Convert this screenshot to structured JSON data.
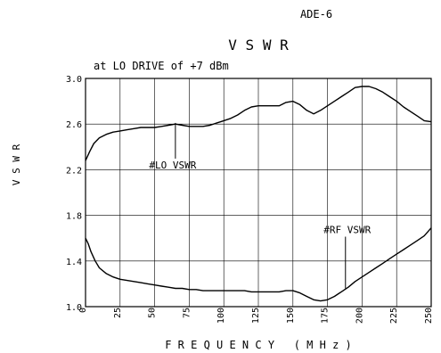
{
  "model": "ADE-6",
  "chart_data": {
    "type": "line",
    "title": "V S W R",
    "subtitle": "at LO DRIVE of +7 dBm",
    "xlabel": "F R E Q U E N C Y   ( M H z )",
    "ylabel": "V S W R",
    "xlim": [
      0,
      250
    ],
    "ylim": [
      1.0,
      3.0
    ],
    "x_ticks": [
      0,
      25,
      50,
      75,
      100,
      125,
      150,
      175,
      200,
      225,
      250
    ],
    "y_ticks": [
      1.0,
      1.4,
      1.8,
      2.2,
      2.6,
      3.0
    ],
    "y_tick_labels": [
      "1.0",
      "1.4",
      "1.8",
      "2.2",
      "2.6",
      "3.0"
    ],
    "grid": true,
    "series": [
      {
        "name": "#LO VSWR",
        "x": [
          0,
          3,
          6,
          10,
          15,
          20,
          25,
          30,
          35,
          40,
          45,
          50,
          55,
          60,
          65,
          70,
          75,
          80,
          85,
          90,
          95,
          100,
          105,
          110,
          115,
          120,
          125,
          130,
          135,
          140,
          145,
          150,
          155,
          160,
          165,
          170,
          175,
          180,
          185,
          190,
          195,
          200,
          205,
          210,
          215,
          220,
          225,
          230,
          235,
          240,
          245,
          250
        ],
        "y": [
          2.28,
          2.36,
          2.43,
          2.48,
          2.51,
          2.53,
          2.54,
          2.55,
          2.56,
          2.57,
          2.57,
          2.57,
          2.58,
          2.59,
          2.6,
          2.59,
          2.58,
          2.58,
          2.58,
          2.59,
          2.61,
          2.63,
          2.65,
          2.68,
          2.72,
          2.75,
          2.76,
          2.76,
          2.76,
          2.76,
          2.79,
          2.8,
          2.77,
          2.72,
          2.69,
          2.72,
          2.76,
          2.8,
          2.84,
          2.88,
          2.92,
          2.93,
          2.93,
          2.91,
          2.88,
          2.84,
          2.8,
          2.75,
          2.71,
          2.67,
          2.63,
          2.62
        ]
      },
      {
        "name": "#RF VSWR",
        "x": [
          0,
          2,
          4,
          7,
          10,
          15,
          20,
          25,
          30,
          35,
          40,
          45,
          50,
          55,
          60,
          65,
          70,
          75,
          80,
          85,
          90,
          95,
          100,
          105,
          110,
          115,
          120,
          125,
          130,
          135,
          140,
          145,
          150,
          155,
          160,
          165,
          170,
          175,
          180,
          185,
          190,
          195,
          200,
          205,
          210,
          215,
          220,
          225,
          230,
          235,
          240,
          245,
          250
        ],
        "y": [
          1.6,
          1.55,
          1.48,
          1.4,
          1.34,
          1.29,
          1.26,
          1.24,
          1.23,
          1.22,
          1.21,
          1.2,
          1.19,
          1.18,
          1.17,
          1.16,
          1.16,
          1.15,
          1.15,
          1.14,
          1.14,
          1.14,
          1.14,
          1.14,
          1.14,
          1.14,
          1.13,
          1.13,
          1.13,
          1.13,
          1.13,
          1.14,
          1.14,
          1.12,
          1.09,
          1.06,
          1.05,
          1.06,
          1.09,
          1.13,
          1.17,
          1.22,
          1.26,
          1.3,
          1.34,
          1.38,
          1.42,
          1.46,
          1.5,
          1.54,
          1.58,
          1.62,
          1.69
        ]
      }
    ],
    "annotations": [
      {
        "text": "#LO VSWR",
        "point_x": 65,
        "point_y": 2.61
      },
      {
        "text": "#RF VSWR",
        "point_x": 188,
        "point_y": 1.16
      }
    ]
  }
}
